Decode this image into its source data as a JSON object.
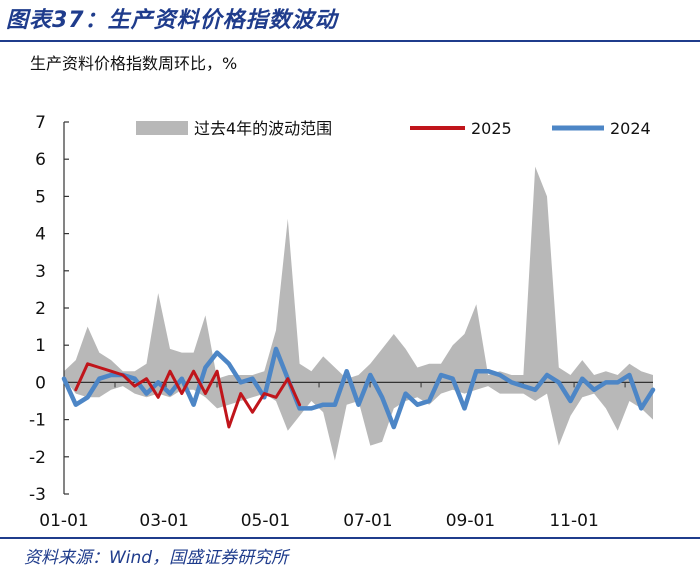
{
  "header": {
    "title": "图表37：生产资料价格指数波动"
  },
  "footer": {
    "source": "资料来源：Wind，国盛证券研究所"
  },
  "colors": {
    "band": "#b8b8b8",
    "s2025": "#c0151b",
    "s2024": "#4d86c6",
    "accent": "#1f3c8c"
  },
  "chart_data": {
    "type": "line",
    "title": "",
    "ylabel": "生产资料价格指数周环比，%",
    "xlabel": "",
    "ylim": [
      -3,
      7
    ],
    "yticks": [
      7,
      6,
      5,
      4,
      3,
      2,
      1,
      0,
      -1,
      -2,
      -3
    ],
    "xlim": [
      0,
      50
    ],
    "xticks": [
      {
        "label": "01-01",
        "value": 0
      },
      {
        "label": "03-01",
        "value": 8.5
      },
      {
        "label": "05-01",
        "value": 17.1
      },
      {
        "label": "07-01",
        "value": 25.8
      },
      {
        "label": "09-01",
        "value": 34.5
      },
      {
        "label": "11-01",
        "value": 43.3
      }
    ],
    "legend": [
      "过去4年的波动范围",
      "2025",
      "2024"
    ],
    "legend_placement": "top",
    "grid": false,
    "band": {
      "name": "过去4年的波动范围",
      "x": [
        0,
        1,
        2,
        3,
        4,
        5,
        6,
        7,
        8,
        9,
        10,
        11,
        12,
        13,
        14,
        15,
        16,
        17,
        18,
        19,
        20,
        21,
        22,
        23,
        24,
        25,
        26,
        27,
        28,
        29,
        30,
        31,
        32,
        33,
        34,
        35,
        36,
        37,
        38,
        39,
        40,
        41,
        42,
        43,
        44,
        45,
        46,
        47,
        48,
        49,
        50
      ],
      "high": [
        0.3,
        0.6,
        1.5,
        0.8,
        0.6,
        0.3,
        0.3,
        0.5,
        2.4,
        0.9,
        0.8,
        0.8,
        1.8,
        0.1,
        0.2,
        0.2,
        0.2,
        0.3,
        1.4,
        4.4,
        0.5,
        0.3,
        0.7,
        0.4,
        0.1,
        0.2,
        0.5,
        0.9,
        1.3,
        0.9,
        0.4,
        0.5,
        0.5,
        1.0,
        1.3,
        2.1,
        0.2,
        0.3,
        0.2,
        0.2,
        5.8,
        5.0,
        0.4,
        0.2,
        0.6,
        0.2,
        0.3,
        0.2,
        0.5,
        0.3,
        0.2
      ],
      "low": [
        0.1,
        -0.3,
        -0.4,
        -0.4,
        -0.2,
        -0.1,
        -0.3,
        -0.4,
        -0.3,
        -0.4,
        -0.2,
        -0.2,
        -0.4,
        -0.7,
        -0.6,
        -0.5,
        -0.4,
        -0.3,
        -0.5,
        -1.3,
        -0.9,
        -0.5,
        -0.8,
        -2.1,
        -0.6,
        -0.5,
        -1.7,
        -1.6,
        -0.7,
        -0.5,
        -0.4,
        -0.6,
        -0.3,
        -0.2,
        -0.3,
        -0.2,
        -0.1,
        -0.3,
        -0.3,
        -0.3,
        -0.5,
        -0.3,
        -1.7,
        -0.9,
        -0.4,
        -0.3,
        -0.7,
        -1.3,
        -0.5,
        -0.7,
        -1.0
      ]
    },
    "series": [
      {
        "name": "2025",
        "x": [
          1,
          2,
          3,
          4,
          5,
          6,
          7,
          8,
          9,
          10,
          11,
          12,
          13,
          14,
          15,
          16,
          17,
          18,
          19,
          20
        ],
        "values": [
          -0.2,
          0.5,
          0.4,
          0.3,
          0.2,
          -0.1,
          0.1,
          -0.4,
          0.3,
          -0.3,
          0.3,
          -0.3,
          0.3,
          -1.2,
          -0.3,
          -0.8,
          -0.3,
          -0.4,
          0.1,
          -0.6
        ]
      },
      {
        "name": "2024",
        "x": [
          0,
          1,
          2,
          3,
          4,
          5,
          6,
          7,
          8,
          9,
          10,
          11,
          12,
          13,
          14,
          15,
          16,
          17,
          18,
          19,
          20,
          21,
          22,
          23,
          24,
          25,
          26,
          27,
          28,
          29,
          30,
          31,
          32,
          33,
          34,
          35,
          36,
          37,
          38,
          39,
          40,
          41,
          42,
          43,
          44,
          45,
          46,
          47,
          48,
          49,
          50
        ],
        "values": [
          0.1,
          -0.6,
          -0.4,
          0.1,
          0.2,
          0.2,
          0.1,
          -0.3,
          0.0,
          -0.3,
          0.1,
          -0.6,
          0.4,
          0.8,
          0.5,
          0.0,
          0.1,
          -0.4,
          0.9,
          0.1,
          -0.7,
          -0.7,
          -0.6,
          -0.6,
          0.3,
          -0.6,
          0.2,
          -0.4,
          -1.2,
          -0.3,
          -0.6,
          -0.5,
          0.2,
          0.1,
          -0.7,
          0.3,
          0.3,
          0.2,
          0.0,
          -0.1,
          -0.2,
          0.2,
          0.0,
          -0.5,
          0.1,
          -0.2,
          0.0,
          0.0,
          0.2,
          -0.7,
          -0.2
        ]
      }
    ]
  }
}
